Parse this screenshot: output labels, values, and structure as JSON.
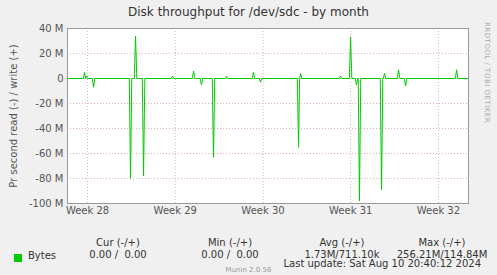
{
  "chart_data": {
    "type": "line",
    "title": "Disk throughput for /dev/sdc - by month",
    "ylabel": "Pr second read (-) / write (+)",
    "x": [
      0,
      1.26,
      1.36,
      1.44,
      1.52,
      1.6,
      1.98,
      2.08,
      2.18,
      4.93,
      5.03,
      5.13,
      5.33,
      5.43,
      5.53,
      5.97,
      6.07,
      6.17,
      8.28,
      8.38,
      8.48,
      9.96,
      10.06,
      10.16,
      10.59,
      10.69,
      10.79,
      11.55,
      11.65,
      11.75,
      12.59,
      12.69,
      12.79,
      14.74,
      14.84,
      14.94,
      15.3,
      15.4,
      15.5,
      18.34,
      18.44,
      18.52,
      18.6,
      18.7,
      21.69,
      21.79,
      21.89,
      22.49,
      22.59,
      22.69,
      22.96,
      23.06,
      23.16,
      23.2,
      23.3,
      23.4,
      24.96,
      25.06,
      25.16,
      25.2,
      25.3,
      25.4,
      26.32,
      26.42,
      26.52,
      26.88,
      26.98,
      27.08,
      30.95,
      31.05,
      31.15,
      32
    ],
    "series": [
      {
        "name": "Bytes",
        "color": "#00cc00",
        "values": [
          0,
          0,
          5000000,
          0,
          2000000,
          0,
          0,
          -7000000,
          0,
          0,
          -80000000,
          0,
          0,
          34000000,
          0,
          0,
          -78000000,
          0,
          0,
          2000000,
          0,
          0,
          6000000,
          0,
          0,
          -5000000,
          0,
          0,
          -63000000,
          0,
          0,
          2000000,
          0,
          0,
          5000000,
          0,
          0,
          -3000000,
          0,
          0,
          -55000000,
          0,
          4000000,
          0,
          0,
          2000000,
          0,
          0,
          33000000,
          0,
          0,
          -5000000,
          0,
          0,
          -98000000,
          0,
          0,
          -89000000,
          0,
          0,
          4000000,
          0,
          0,
          7000000,
          0,
          0,
          -6000000,
          0,
          0,
          7000000,
          0,
          0
        ]
      }
    ],
    "xlim": [
      0,
      32
    ],
    "xticks": [
      {
        "value": 1.6,
        "label": "Week 28"
      },
      {
        "value": 8.6,
        "label": "Week 29"
      },
      {
        "value": 15.6,
        "label": "Week 30"
      },
      {
        "value": 22.6,
        "label": "Week 31"
      },
      {
        "value": 29.6,
        "label": "Week 32"
      }
    ],
    "ylim": [
      -100000000,
      40000000
    ],
    "yticks": [
      {
        "value": -100000000,
        "label": "-100 M"
      },
      {
        "value": -80000000,
        "label": "-80 M"
      },
      {
        "value": -60000000,
        "label": "-60 M"
      },
      {
        "value": -40000000,
        "label": "-40 M"
      },
      {
        "value": -20000000,
        "label": "-20 M"
      },
      0,
      {
        "value": 20000000,
        "label": "20 M"
      },
      {
        "value": 40000000,
        "label": "40 M"
      }
    ],
    "grid": true,
    "legend": "bottom",
    "legend_table": {
      "columns": [
        "Cur (-/+)",
        "Min (-/+)",
        "Avg (-/+)",
        "Max (-/+)"
      ],
      "cells": [
        "0.00 /  0.00",
        "0.00 /  0.00",
        "1.73M/711.10k",
        "256.21M/114.84M"
      ]
    },
    "last_update": "Last update: Sat Aug 10 20:40:12 2024",
    "credit": "Munin 2.0.56",
    "watermark": "RRDTOOL / TOBI OETIKER"
  }
}
